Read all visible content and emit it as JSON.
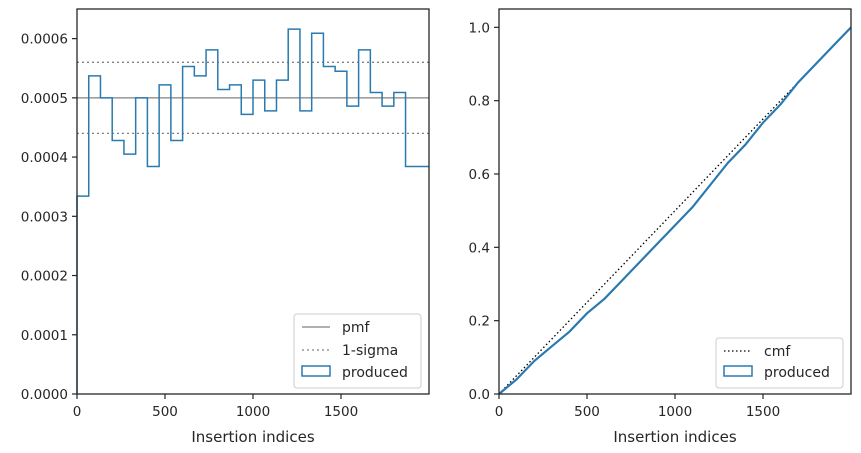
{
  "chart_data": [
    {
      "type": "histogram",
      "xlabel": "Insertion indices",
      "xlim": [
        0,
        2000
      ],
      "ylim": [
        0,
        0.00065
      ],
      "xticks": [
        0,
        500,
        1000,
        1500
      ],
      "xtick_labels": [
        "0",
        "500",
        "1000",
        "1500"
      ],
      "yticks": [
        0,
        0.0001,
        0.0002,
        0.0003,
        0.0004,
        0.0005,
        0.0006
      ],
      "ytick_labels": [
        "0.0000",
        "0.0001",
        "0.0002",
        "0.0003",
        "0.0004",
        "0.0005",
        "0.0006"
      ],
      "bin_width": 66.67,
      "hist_values": [
        0.000334,
        0.000537,
        0.0005,
        0.000428,
        0.000405,
        0.0005,
        0.000384,
        0.000522,
        0.000428,
        0.000553,
        0.000537,
        0.000581,
        0.000514,
        0.000522,
        0.000472,
        0.00053,
        0.000478,
        0.00053,
        0.000616,
        0.000478,
        0.000609,
        0.000553,
        0.000545,
        0.000486,
        0.000581,
        0.000509,
        0.000486,
        0.000509,
        0.000384,
        0.000384
      ],
      "pmf": 0.0005,
      "sigma_band": [
        0.00044,
        0.00056
      ],
      "legend": {
        "position": "lower right",
        "entries": [
          "pmf",
          "1-sigma",
          "produced"
        ]
      },
      "colors": {
        "produced": "#2a7ab0",
        "pmf": "#808080",
        "sigma": "#808080"
      }
    },
    {
      "type": "line",
      "xlabel": "Insertion indices",
      "xlim": [
        0,
        2000
      ],
      "ylim": [
        0,
        1.05
      ],
      "xticks": [
        0,
        500,
        1000,
        1500
      ],
      "xtick_labels": [
        "0",
        "500",
        "1000",
        "1500"
      ],
      "yticks": [
        0,
        0.2,
        0.4,
        0.6,
        0.8,
        1.0
      ],
      "ytick_labels": [
        "0.0",
        "0.2",
        "0.4",
        "0.6",
        "0.8",
        "1.0"
      ],
      "cmf": {
        "x": [
          0,
          2000
        ],
        "y": [
          0,
          1.0
        ]
      },
      "produced": {
        "x": [
          0,
          100,
          200,
          300,
          400,
          500,
          600,
          700,
          800,
          900,
          1000,
          1100,
          1200,
          1300,
          1400,
          1500,
          1600,
          1700,
          1800,
          1900,
          2000
        ],
        "y": [
          0,
          0.04,
          0.09,
          0.13,
          0.17,
          0.22,
          0.26,
          0.31,
          0.36,
          0.41,
          0.46,
          0.51,
          0.57,
          0.63,
          0.68,
          0.74,
          0.79,
          0.85,
          0.9,
          0.95,
          1.0
        ]
      },
      "legend": {
        "position": "lower right",
        "entries": [
          "cmf",
          "produced"
        ]
      },
      "colors": {
        "produced": "#2a7ab0",
        "cmf": "#000000"
      }
    }
  ]
}
